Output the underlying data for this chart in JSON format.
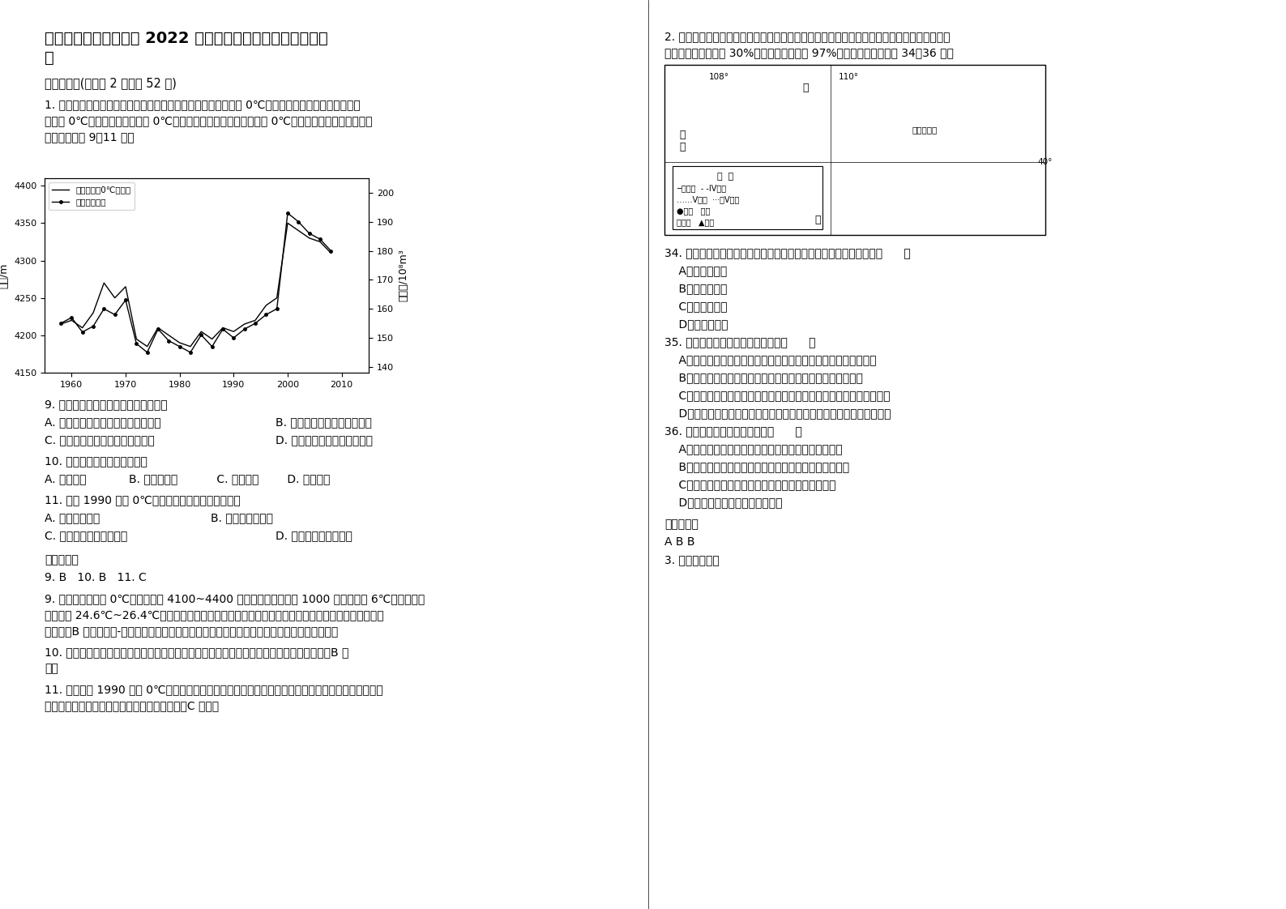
{
  "title_line1": "湖北省鄂州市第六中学 2022 年高三地理上学期期末试题含解",
  "title_line2": "析",
  "section1": "一、选择题(每小题 2 分，共 52 分)",
  "q1_line1": "1. 一般情况下，对流层气温与海拔呈负相关。当地面气温上升至 0℃以上时，在高空中的一定高度则",
  "q1_line2": "会出现 0℃层，即气象学上说的 0℃层高度。下图为我国某地某季节 0℃层高度与河流年径流量组合",
  "q1_line3": "图。据此完成 9～11 题。",
  "ylabel_left": "高度/m",
  "ylabel_right": "径流量/10⁸m³",
  "legend1": "某地某季节0℃层高度",
  "legend2": "河流年径流量",
  "years": [
    1958,
    1960,
    1962,
    1964,
    1966,
    1968,
    1970,
    1972,
    1974,
    1976,
    1978,
    1980,
    1982,
    1984,
    1986,
    1988,
    1990,
    1992,
    1994,
    1996,
    1998,
    2000,
    2002,
    2004,
    2006,
    2008
  ],
  "height_0C": [
    4215,
    4220,
    4210,
    4230,
    4270,
    4250,
    4265,
    4195,
    4185,
    4210,
    4200,
    4190,
    4185,
    4205,
    4195,
    4210,
    4205,
    4215,
    4220,
    4240,
    4250,
    4350,
    4340,
    4330,
    4325,
    4310
  ],
  "flow": [
    155,
    157,
    152,
    154,
    160,
    158,
    163,
    148,
    145,
    153,
    149,
    147,
    145,
    151,
    147,
    153,
    150,
    153,
    155,
    158,
    160,
    193,
    190,
    186,
    184,
    180
  ],
  "q9": "9. 下列关于图示季节的叙述，正确的是",
  "q9ab": [
    "A. 巴黎盆地的主体树种树叶陆续泛黄",
    "B. 澳大利亚大陆等温线向北凸"
  ],
  "q9cd": [
    "C. 墨累达令盆地农民忙于种植小麦",
    "D. 北印度洋大洋环流呈逆时针"
  ],
  "q10": "10. 据图推测，该地最可能位于",
  "q10abcd": "A. 黄土高原            B. 塔里木盆地           C. 东北平原        D. 云贵高原",
  "q11": "11. 图中 1990 年后 0℃层高度变化的原因，最可能是",
  "q11ab": [
    "A. 全球气候变暖",
    "B. 植被覆盖率提高"
  ],
  "q11cd": [
    "C. 城市化与工业化的发展",
    "D. 大力开发利用新能源"
  ],
  "ref_ans_label": "参考答案：",
  "ref_ans": "9. B   10. B   11. C",
  "expl9_l1": "9. 从图中看该季节 0℃层高度海拔 4100~4400 米，根据海拔每升高 1000 米气温下降 6℃，可推出近",
  "expl9_l2": "地面气温 24.6℃~26.4℃，为夏季，巴黎盆地的主体树种树叶陆续泛黄为秋季；澳大利亚大陆等温线",
  "expl9_l3": "向北凸，B 正确；墨累-达令盆地农民忙于种植小麦为秋季；北印度洋大洋环流呈逆时针为冬季。",
  "expl10_l1": "10. 从图中看该地区河流年径流量较小，且径流量年际变化小，最可能位于我国塔里木盆地，B 正",
  "expl10_l2": "确。",
  "expl11_l1": "11. 从图中看 1990 年后 0℃层高度升高，原因是近地面气温升高，最可能是城市化与工业化的发展，",
  "expl11_l2": "破坏植被，植被覆盖率下，调节气候功能减弱，C 正确。",
  "q2_line1": "2. 稀土被誉为新材料之母，广泛应用于光学、电子信息、航空航天等尖端科技领域，目前我国",
  "q2_line2": "的稀土储量占世界的 30%，供应了国际市场 97%的需求，读图，回答 34～36 题。",
  "q34": "34. 图中甲地是我国稀土矿产量最多的地区，该地的稀土开采业属于（      ）",
  "q34a": "    A．原料导向型",
  "q34b": "    B．市场导向型",
  "q34c": "    C．技术导向型",
  "q34d": "    D．动力导向型",
  "q35": "35. 有关图示区域的说法，正确的是（      ）",
  "q35a": "    A．甲地区可利用当地丰富的稀土、水资源，发展成为重工业基地",
  "q35b": "    B．乙地区是农耕区，应注意合理灌溉，防止土壤次生盐碱化",
  "q35c": "    C．丙地区水源充足，土壤肥沃，可以大力发展柑橘、苹果等经济作物",
  "q35d": "    D．丁地河段径流量大，含沙量大，水质不好，应大量抽取地下水使用",
  "q36": "36. 全球气候变暖能带来的影响（      ）",
  "q36a": "    A．大气中二氧化碳浓度增加，两极地区冰川面积减少",
  "q36b": "    B．各地区降水和干湿状况发生变化，旱涝灾害更加频繁",
  "q36c": "    C．全球平均海平面上升，山地永久积雪的下界下降",
  "q36d": "    D．蒸发旺盛，全球气候更加干旱",
  "ref_ans2_label": "参考答案：",
  "ref_ans2": "A B B",
  "ref_ans2_note": "3. 读下图，完成",
  "background_color": "#ffffff"
}
